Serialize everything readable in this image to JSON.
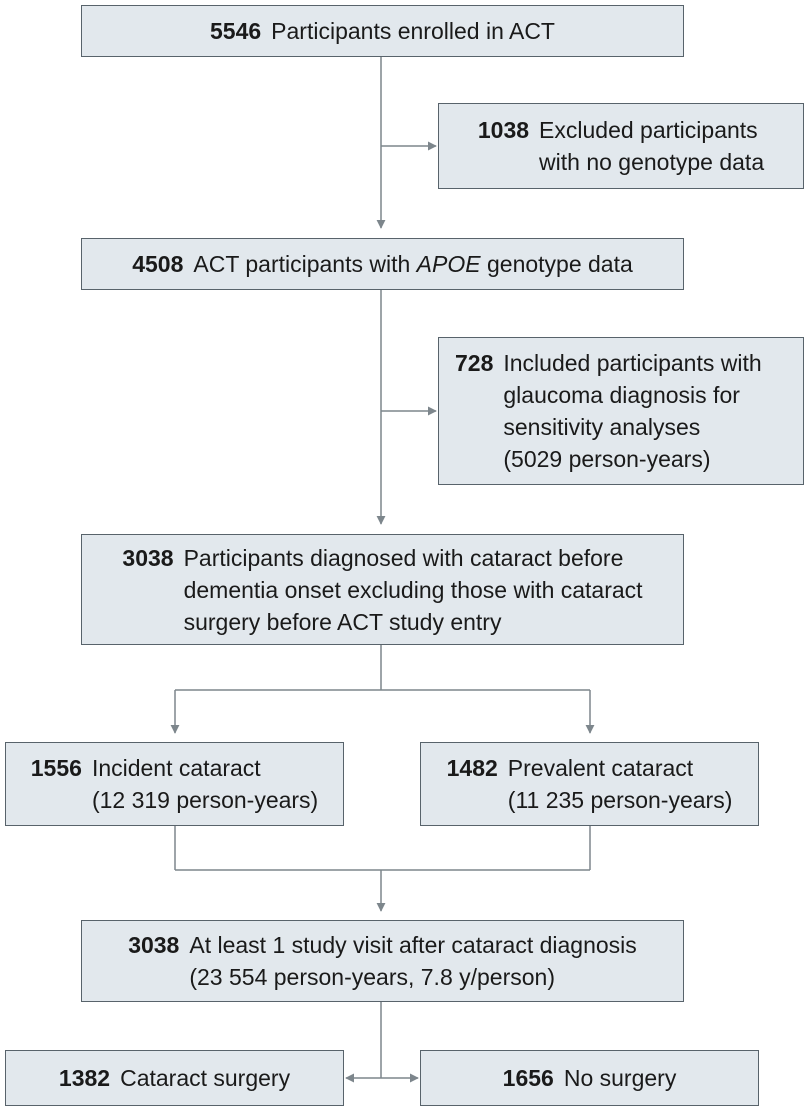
{
  "boxes": {
    "enrolled": {
      "n": "5546",
      "lines": [
        "Participants enrolled in ACT"
      ]
    },
    "excluded": {
      "n": "1038",
      "lines": [
        "Excluded participants",
        "with no genotype data"
      ]
    },
    "apoe": {
      "n": "4508",
      "pre": "ACT participants with ",
      "em": "APOE",
      "post": " genotype data"
    },
    "glaucoma": {
      "n": "728",
      "lines": [
        "Included participants with",
        "glaucoma diagnosis for",
        "sensitivity analyses",
        "(5029 person-years)"
      ]
    },
    "diagnosed": {
      "n": "3038",
      "lines": [
        "Participants diagnosed with cataract before",
        "dementia onset excluding those with cataract",
        "surgery before ACT study entry"
      ]
    },
    "incident": {
      "n": "1556",
      "lines": [
        "Incident cataract",
        "(12 319 person-years)"
      ]
    },
    "prevalent": {
      "n": "1482",
      "lines": [
        "Prevalent cataract",
        "(11 235 person-years)"
      ]
    },
    "visit": {
      "n": "3038",
      "lines": [
        "At least 1 study visit after cataract diagnosis",
        "(23 554 person-years, 7.8 y/person)"
      ]
    },
    "surgery": {
      "n": "1382",
      "lines": [
        "Cataract surgery"
      ]
    },
    "nosurgery": {
      "n": "1656",
      "lines": [
        "No surgery"
      ]
    }
  },
  "colors": {
    "box_fill": "#e2e8ed",
    "box_border": "#58636b",
    "connector": "#7d868c",
    "text": "#1a1a1a"
  }
}
